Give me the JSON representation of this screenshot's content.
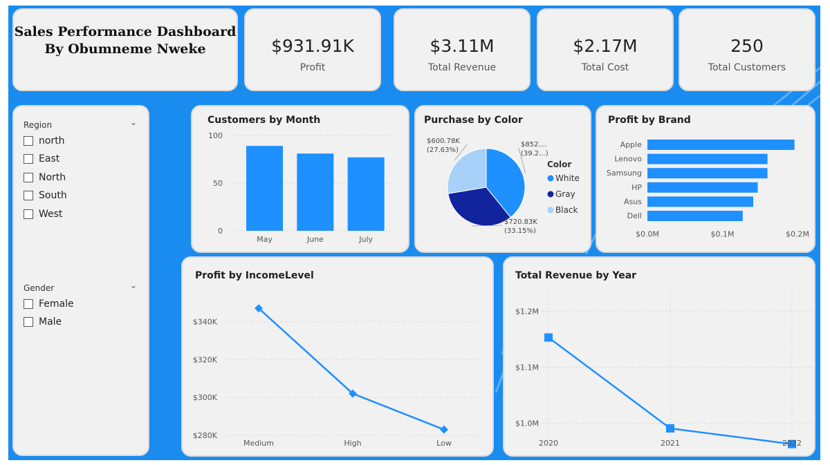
{
  "dashboard": {
    "title_line1": "Sales Performance Dashboard",
    "title_line2": "By Obumneme Nweke",
    "colors": {
      "background": "#1a8cf0",
      "card": "#f1f1f1",
      "accent": "#1e90ff",
      "dark": "#12239e",
      "light": "#a7d1f8"
    }
  },
  "kpis": [
    {
      "value": "$931.91K",
      "label": "Profit"
    },
    {
      "value": "$3.11M",
      "label": "Total Revenue"
    },
    {
      "value": "$2.17M",
      "label": "Total Cost"
    },
    {
      "value": "250",
      "label": "Total Customers"
    }
  ],
  "slicers": {
    "region": {
      "title": "Region",
      "options": [
        "north",
        "East",
        "North",
        "South",
        "West"
      ]
    },
    "gender": {
      "title": "Gender",
      "options": [
        "Female",
        "Male"
      ]
    },
    "chevron_icon": "chevron-down-icon"
  },
  "chart_data": [
    {
      "id": "customers_by_month",
      "type": "bar",
      "title": "Customers by Month",
      "categories": [
        "May",
        "June",
        "July"
      ],
      "values": [
        89,
        81,
        77
      ],
      "ylim": [
        0,
        100
      ],
      "yticks": [
        "0",
        "50",
        "100"
      ],
      "ytick_values": [
        0,
        50,
        100
      ]
    },
    {
      "id": "purchase_by_color",
      "type": "pie",
      "title": "Purchase by Color",
      "legend_title": "Color",
      "legend_position": "right",
      "slices": [
        {
          "name": "White",
          "value": 852,
          "label": "$852....",
          "pct_label": "(39.2...)",
          "color": "#1e90ff"
        },
        {
          "name": "Gray",
          "value": 720.83,
          "label": "$720.83K",
          "pct_label": "(33.15%)",
          "color": "#12239e"
        },
        {
          "name": "Black",
          "value": 600.78,
          "label": "$600.78K",
          "pct_label": "(27.63%)",
          "color": "#a7d1f8"
        }
      ]
    },
    {
      "id": "profit_by_brand",
      "type": "bar",
      "orientation": "horizontal",
      "title": "Profit by Brand",
      "categories": [
        "Apple",
        "Lenovo",
        "Samsung",
        "HP",
        "Asus",
        "Dell"
      ],
      "values": [
        0.196,
        0.16,
        0.16,
        0.147,
        0.141,
        0.127
      ],
      "xlim": [
        0,
        0.2
      ],
      "xticks": [
        "$0.0M",
        "$0.1M",
        "$0.2M"
      ],
      "xtick_values": [
        0,
        0.1,
        0.2
      ]
    },
    {
      "id": "profit_by_incomelevel",
      "type": "line",
      "title": "Profit by IncomeLevel",
      "categories": [
        "Medium",
        "High",
        "Low"
      ],
      "values": [
        347,
        302,
        283
      ],
      "ylim": [
        280,
        350
      ],
      "yticks": [
        "$280K",
        "$300K",
        "$320K",
        "$340K"
      ],
      "ytick_values": [
        280,
        300,
        320,
        340
      ]
    },
    {
      "id": "total_revenue_by_year",
      "type": "line",
      "title": "Total Revenue by Year",
      "categories": [
        "2020",
        "2021",
        "2022"
      ],
      "values": [
        1.153,
        0.991,
        0.963
      ],
      "ylim": [
        0.975,
        1.225
      ],
      "yticks": [
        "$1.0M",
        "$1.1M",
        "$1.2M"
      ],
      "ytick_values": [
        1.0,
        1.1,
        1.2
      ]
    }
  ]
}
